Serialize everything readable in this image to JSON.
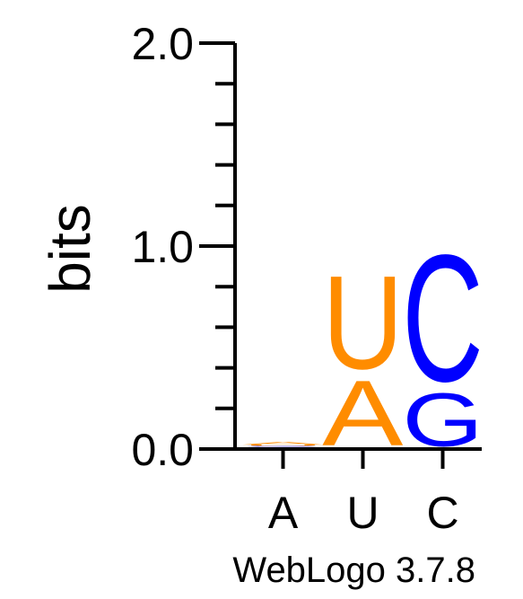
{
  "chart_data": {
    "type": "sequence-logo",
    "ylabel": "bits",
    "ylim": [
      0,
      2.0
    ],
    "yticks": [
      "0.0",
      "1.0",
      "2.0"
    ],
    "ytick_values": [
      0,
      1.0,
      2.0
    ],
    "minor_tick_step": 0.2,
    "columns": [
      {
        "label": "A",
        "letters": [
          {
            "letter": "A",
            "bits": 0.01,
            "color": "#ff8c00"
          },
          {
            "letter": "C",
            "bits": 0.003,
            "color": "#0000ff"
          },
          {
            "letter": "G",
            "bits": 0.003,
            "color": "#0000ff"
          },
          {
            "letter": "U",
            "bits": 0.005,
            "color": "#ff8c00"
          },
          {
            "letter": "A",
            "bits": 0.015,
            "color": "#ff8c00"
          }
        ]
      },
      {
        "label": "U",
        "letters": [
          {
            "letter": "A",
            "bits": 0.37,
            "color": "#ff8c00"
          },
          {
            "letter": "U",
            "bits": 0.53,
            "color": "#ff8c00"
          }
        ]
      },
      {
        "label": "C",
        "letters": [
          {
            "letter": "G",
            "bits": 0.3,
            "color": "#0000ff"
          },
          {
            "letter": "C",
            "bits": 0.72,
            "color": "#0000ff"
          }
        ]
      }
    ],
    "credit": "WebLogo 3.7.8"
  },
  "colors": {
    "orange": "#ff8c00",
    "blue": "#0000ff",
    "axis": "#000000"
  }
}
